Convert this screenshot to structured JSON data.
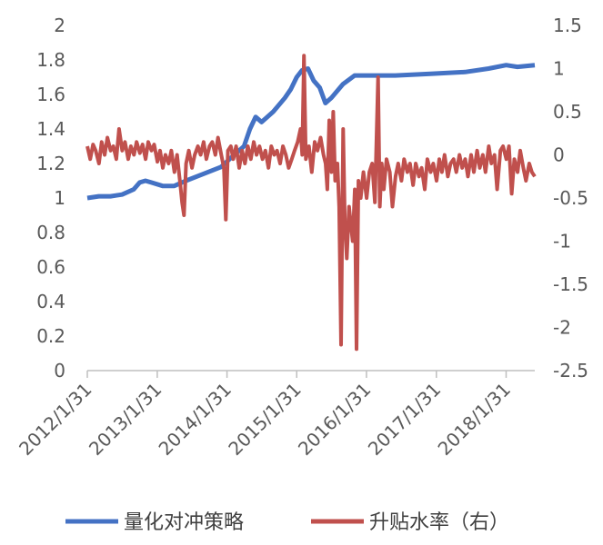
{
  "chart_data": {
    "type": "line",
    "title": "",
    "xlabel": "",
    "y_left": {
      "ticks": [
        "0",
        "0.2",
        "0.4",
        "0.6",
        "0.8",
        "1",
        "1.2",
        "1.4",
        "1.6",
        "1.8",
        "2"
      ],
      "ylim": [
        0,
        2
      ]
    },
    "y_right": {
      "ticks": [
        "-2.5",
        "-2",
        "-1.5",
        "-1",
        "-0.5",
        "0",
        "0.5",
        "1",
        "1.5"
      ],
      "ylim": [
        -2.5,
        1.5
      ]
    },
    "x_ticks": [
      "2012/1/31",
      "2013/1/31",
      "2014/1/31",
      "2015/1/31",
      "2016/1/31",
      "2017/1/31",
      "2018/1/31"
    ],
    "x_range": [
      "2012/1/31",
      "2018/6/30"
    ],
    "grid": false,
    "legend_position": "bottom",
    "series": [
      {
        "name": "量化对冲策略",
        "axis": "left",
        "color": "#4472C4",
        "points": [
          [
            "2012/1/31",
            1.0
          ],
          [
            "2012/3/31",
            1.01
          ],
          [
            "2012/5/31",
            1.01
          ],
          [
            "2012/7/31",
            1.02
          ],
          [
            "2012/9/30",
            1.05
          ],
          [
            "2012/10/31",
            1.09
          ],
          [
            "2012/11/30",
            1.1
          ],
          [
            "2012/12/31",
            1.09
          ],
          [
            "2013/2/28",
            1.07
          ],
          [
            "2013/4/30",
            1.07
          ],
          [
            "2013/6/30",
            1.1
          ],
          [
            "2013/9/30",
            1.14
          ],
          [
            "2013/12/31",
            1.18
          ],
          [
            "2014/2/28",
            1.24
          ],
          [
            "2014/4/30",
            1.3
          ],
          [
            "2014/5/31",
            1.4
          ],
          [
            "2014/6/30",
            1.47
          ],
          [
            "2014/7/31",
            1.44
          ],
          [
            "2014/9/30",
            1.5
          ],
          [
            "2014/11/30",
            1.58
          ],
          [
            "2014/12/31",
            1.63
          ],
          [
            "2015/1/31",
            1.7
          ],
          [
            "2015/2/28",
            1.74
          ],
          [
            "2015/3/31",
            1.75
          ],
          [
            "2015/4/30",
            1.68
          ],
          [
            "2015/5/31",
            1.64
          ],
          [
            "2015/6/30",
            1.55
          ],
          [
            "2015/7/31",
            1.58
          ],
          [
            "2015/9/30",
            1.66
          ],
          [
            "2015/11/30",
            1.71
          ],
          [
            "2016/1/31",
            1.71
          ],
          [
            "2016/6/30",
            1.71
          ],
          [
            "2016/12/31",
            1.72
          ],
          [
            "2017/6/30",
            1.73
          ],
          [
            "2017/10/31",
            1.75
          ],
          [
            "2018/1/31",
            1.77
          ],
          [
            "2018/3/31",
            1.76
          ],
          [
            "2018/6/30",
            1.77
          ]
        ]
      },
      {
        "name": "升贴水率（右）",
        "axis": "right",
        "color": "#C0504D",
        "points": [
          [
            "2012/1/31",
            0.1
          ],
          [
            "2012/2/15",
            -0.05
          ],
          [
            "2012/3/1",
            0.12
          ],
          [
            "2012/3/15",
            0.05
          ],
          [
            "2012/4/1",
            -0.1
          ],
          [
            "2012/4/15",
            0.15
          ],
          [
            "2012/5/1",
            0.0
          ],
          [
            "2012/5/15",
            0.2
          ],
          [
            "2012/6/1",
            0.05
          ],
          [
            "2012/6/15",
            0.1
          ],
          [
            "2012/7/1",
            -0.05
          ],
          [
            "2012/7/15",
            0.3
          ],
          [
            "2012/8/1",
            0.05
          ],
          [
            "2012/8/15",
            0.15
          ],
          [
            "2012/9/1",
            -0.05
          ],
          [
            "2012/9/15",
            0.1
          ],
          [
            "2012/10/1",
            0.0
          ],
          [
            "2012/10/15",
            0.15
          ],
          [
            "2012/11/1",
            0.02
          ],
          [
            "2012/11/15",
            0.12
          ],
          [
            "2012/12/1",
            -0.05
          ],
          [
            "2012/12/15",
            0.15
          ],
          [
            "2013/1/1",
            0.05
          ],
          [
            "2013/1/15",
            0.12
          ],
          [
            "2013/2/1",
            -0.08
          ],
          [
            "2013/2/15",
            0.05
          ],
          [
            "2013/3/1",
            -0.15
          ],
          [
            "2013/3/15",
            0.0
          ],
          [
            "2013/4/1",
            -0.1
          ],
          [
            "2013/4/15",
            0.05
          ],
          [
            "2013/5/1",
            -0.2
          ],
          [
            "2013/5/15",
            0.0
          ],
          [
            "2013/6/1",
            -0.35
          ],
          [
            "2013/6/10",
            -0.55
          ],
          [
            "2013/6/20",
            -0.7
          ],
          [
            "2013/7/1",
            -0.1
          ],
          [
            "2013/7/15",
            0.05
          ],
          [
            "2013/8/1",
            -0.15
          ],
          [
            "2013/8/15",
            0.0
          ],
          [
            "2013/9/1",
            0.1
          ],
          [
            "2013/9/15",
            0.0
          ],
          [
            "2013/10/1",
            0.15
          ],
          [
            "2013/10/15",
            -0.05
          ],
          [
            "2013/11/1",
            0.1
          ],
          [
            "2013/11/15",
            0.15
          ],
          [
            "2013/12/1",
            0.0
          ],
          [
            "2013/12/15",
            0.2
          ],
          [
            "2014/1/1",
            0.0
          ],
          [
            "2014/1/15",
            -0.15
          ],
          [
            "2014/1/25",
            -0.75
          ],
          [
            "2014/2/5",
            0.05
          ],
          [
            "2014/2/20",
            0.1
          ],
          [
            "2014/3/5",
            -0.05
          ],
          [
            "2014/3/20",
            0.1
          ],
          [
            "2014/4/5",
            -0.15
          ],
          [
            "2014/4/20",
            0.05
          ],
          [
            "2014/5/5",
            -0.1
          ],
          [
            "2014/5/20",
            0.1
          ],
          [
            "2014/6/5",
            -0.05
          ],
          [
            "2014/6/20",
            0.15
          ],
          [
            "2014/7/5",
            0.0
          ],
          [
            "2014/7/20",
            0.1
          ],
          [
            "2014/8/5",
            -0.05
          ],
          [
            "2014/8/20",
            0.05
          ],
          [
            "2014/9/5",
            -0.15
          ],
          [
            "2014/9/20",
            0.1
          ],
          [
            "2014/10/5",
            0.0
          ],
          [
            "2014/10/20",
            0.05
          ],
          [
            "2014/11/5",
            -0.1
          ],
          [
            "2014/11/20",
            0.1
          ],
          [
            "2014/12/5",
            0.0
          ],
          [
            "2014/12/20",
            -0.15
          ],
          [
            "2015/1/5",
            -0.05
          ],
          [
            "2015/1/20",
            0.05
          ],
          [
            "2015/2/5",
            0.15
          ],
          [
            "2015/2/20",
            0.3
          ],
          [
            "2015/3/1",
            0.0
          ],
          [
            "2015/3/10",
            1.15
          ],
          [
            "2015/3/20",
            -0.05
          ],
          [
            "2015/4/5",
            0.1
          ],
          [
            "2015/4/20",
            -0.2
          ],
          [
            "2015/5/5",
            0.15
          ],
          [
            "2015/5/20",
            0.05
          ],
          [
            "2015/6/5",
            0.2
          ],
          [
            "2015/6/20",
            0.0
          ],
          [
            "2015/7/1",
            -0.1
          ],
          [
            "2015/7/10",
            -0.4
          ],
          [
            "2015/7/20",
            0.4
          ],
          [
            "2015/8/1",
            -0.2
          ],
          [
            "2015/8/10",
            0.5
          ],
          [
            "2015/8/20",
            -0.3
          ],
          [
            "2015/9/1",
            -0.1
          ],
          [
            "2015/9/10",
            -0.6
          ],
          [
            "2015/9/20",
            -2.2
          ],
          [
            "2015/10/1",
            0.3
          ],
          [
            "2015/10/10",
            -0.8
          ],
          [
            "2015/10/20",
            -1.2
          ],
          [
            "2015/11/1",
            -0.6
          ],
          [
            "2015/11/10",
            -0.8
          ],
          [
            "2015/11/20",
            -1.0
          ],
          [
            "2015/12/1",
            -0.4
          ],
          [
            "2015/12/10",
            -2.25
          ],
          [
            "2015/12/20",
            -0.3
          ],
          [
            "2016/1/1",
            -0.5
          ],
          [
            "2016/1/15",
            -0.2
          ],
          [
            "2016/2/1",
            -0.5
          ],
          [
            "2016/2/15",
            -0.2
          ],
          [
            "2016/3/1",
            -0.1
          ],
          [
            "2016/3/15",
            -0.55
          ],
          [
            "2016/4/1",
            0.9
          ],
          [
            "2016/4/10",
            -0.6
          ],
          [
            "2016/4/20",
            -0.1
          ],
          [
            "2016/5/1",
            -0.4
          ],
          [
            "2016/5/15",
            -0.05
          ],
          [
            "2016/6/1",
            -0.2
          ],
          [
            "2016/6/15",
            -0.6
          ],
          [
            "2016/7/1",
            -0.25
          ],
          [
            "2016/7/15",
            -0.1
          ],
          [
            "2016/8/1",
            -0.3
          ],
          [
            "2016/8/15",
            -0.05
          ],
          [
            "2016/9/1",
            -0.2
          ],
          [
            "2016/9/15",
            -0.1
          ],
          [
            "2016/10/1",
            -0.35
          ],
          [
            "2016/10/15",
            -0.1
          ],
          [
            "2016/11/1",
            -0.25
          ],
          [
            "2016/11/15",
            -0.15
          ],
          [
            "2016/12/1",
            -0.4
          ],
          [
            "2016/12/15",
            -0.05
          ],
          [
            "2017/1/1",
            -0.2
          ],
          [
            "2017/1/15",
            -0.1
          ],
          [
            "2017/2/1",
            -0.3
          ],
          [
            "2017/2/15",
            -0.05
          ],
          [
            "2017/3/1",
            -0.2
          ],
          [
            "2017/3/15",
            0.0
          ],
          [
            "2017/4/1",
            -0.25
          ],
          [
            "2017/4/15",
            -0.1
          ],
          [
            "2017/5/1",
            -0.05
          ],
          [
            "2017/5/15",
            -0.2
          ],
          [
            "2017/6/1",
            0.0
          ],
          [
            "2017/6/15",
            -0.15
          ],
          [
            "2017/7/1",
            -0.05
          ],
          [
            "2017/7/15",
            -0.25
          ],
          [
            "2017/8/1",
            0.0
          ],
          [
            "2017/8/15",
            -0.2
          ],
          [
            "2017/9/1",
            0.05
          ],
          [
            "2017/9/15",
            -0.15
          ],
          [
            "2017/10/1",
            0.0
          ],
          [
            "2017/10/15",
            -0.2
          ],
          [
            "2017/11/1",
            0.1
          ],
          [
            "2017/11/15",
            -0.1
          ],
          [
            "2017/12/1",
            0.0
          ],
          [
            "2017/12/15",
            -0.4
          ],
          [
            "2018/1/1",
            0.05
          ],
          [
            "2018/1/15",
            0.1
          ],
          [
            "2018/2/1",
            -0.05
          ],
          [
            "2018/2/15",
            0.1
          ],
          [
            "2018/3/1",
            -0.45
          ],
          [
            "2018/3/15",
            -0.05
          ],
          [
            "2018/4/1",
            -0.2
          ],
          [
            "2018/4/15",
            0.05
          ],
          [
            "2018/5/1",
            -0.15
          ],
          [
            "2018/5/15",
            -0.3
          ],
          [
            "2018/6/1",
            -0.1
          ],
          [
            "2018/6/15",
            -0.2
          ],
          [
            "2018/6/30",
            -0.25
          ]
        ]
      }
    ]
  }
}
